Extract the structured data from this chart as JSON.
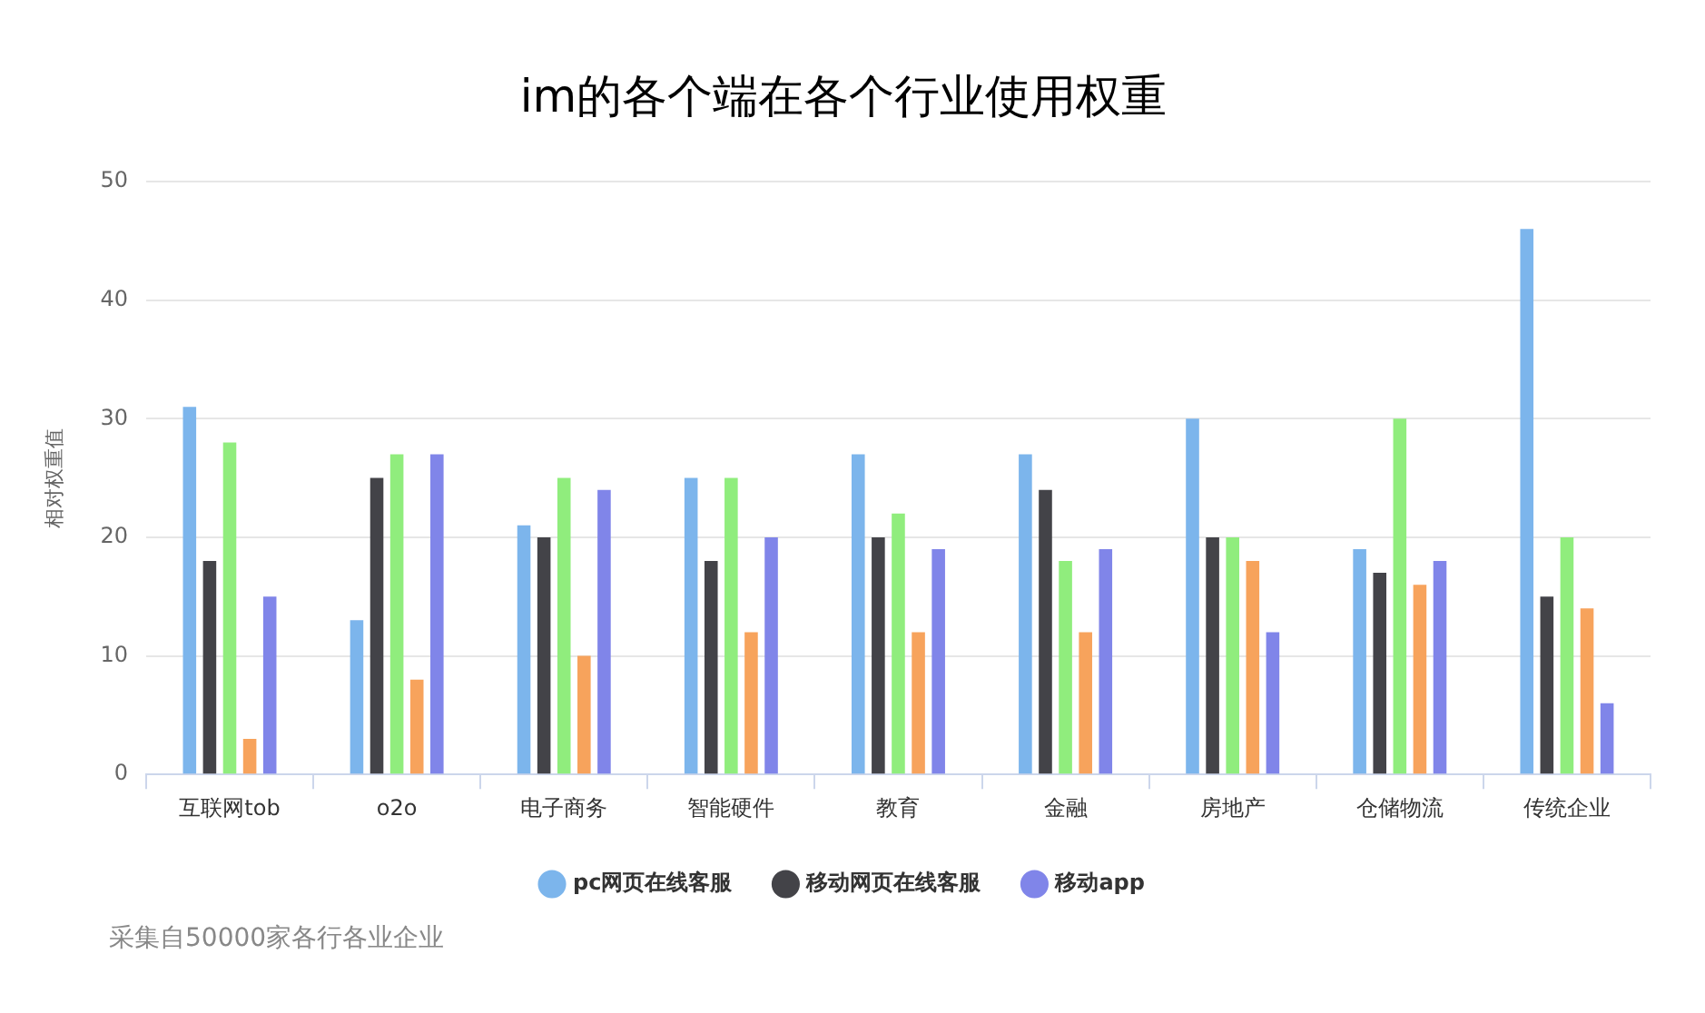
{
  "chart_data": {
    "type": "bar",
    "title": "im的各个端在各个行业使用权重",
    "ylabel": "相对权重值",
    "categories": [
      "互联网tob",
      "o2o",
      "电子商务",
      "智能硬件",
      "教育",
      "金融",
      "房地产",
      "仓储物流",
      "传统企业"
    ],
    "series": [
      {
        "name": "pc网页在线客服",
        "color": "#7cb5ec",
        "values": [
          31,
          13,
          21,
          25,
          27,
          27,
          30,
          19,
          46
        ]
      },
      {
        "name": "移动网页在线客服",
        "color": "#434348",
        "values": [
          18,
          25,
          20,
          18,
          20,
          24,
          20,
          17,
          15
        ]
      },
      {
        "color": "#90ed7d",
        "values": [
          28,
          27,
          25,
          25,
          22,
          18,
          20,
          30,
          20
        ]
      },
      {
        "color": "#f7a35c",
        "values": [
          3,
          8,
          10,
          12,
          12,
          12,
          18,
          16,
          14
        ]
      },
      {
        "name": "移动app",
        "color": "#8085e9",
        "values": [
          15,
          27,
          24,
          20,
          19,
          19,
          12,
          18,
          6
        ]
      }
    ],
    "ylim": [
      0,
      50
    ],
    "yticks": [
      0,
      10,
      20,
      30,
      40,
      50
    ],
    "grid": "y",
    "legend": "bottom",
    "marker": "circle",
    "annotations": [
      "采集自50000家各行各业企业"
    ]
  }
}
